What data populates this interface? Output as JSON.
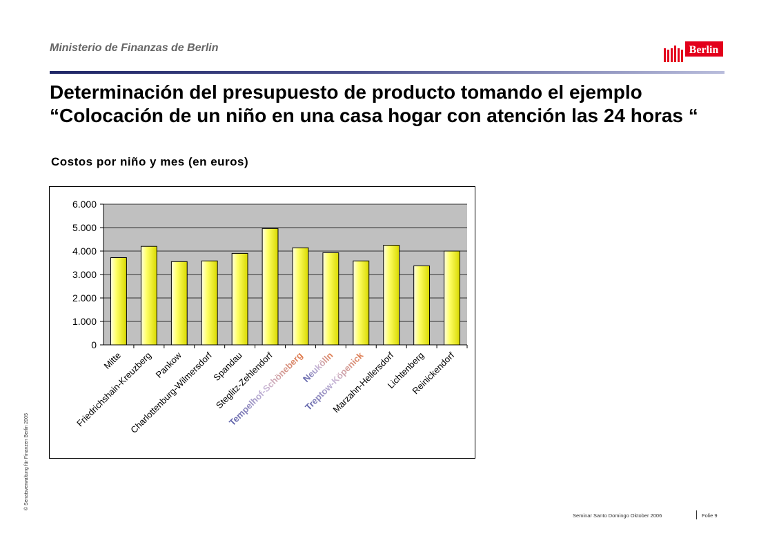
{
  "header": {
    "ministry": "Ministerio de Finanzas de Berlin",
    "logo_text": "Berlin",
    "logo_color": "#e3001b"
  },
  "slide": {
    "title": "Determinación del presupuesto de producto tomando el ejemplo “Colocación de un niño en una casa hogar con atención las 24 horas “",
    "subtitle": "Costos por niño y mes (en euros)"
  },
  "footer": {
    "copyright": "© Senatsverwaltung für Finanzen Berlin 2005",
    "seminar": "Seminar Santo Domingo Oktober 2006",
    "page": "Folie 9"
  },
  "chart_data": {
    "type": "bar",
    "title": "",
    "xlabel": "",
    "ylabel": "",
    "categories": [
      "Mitte",
      "Friedrichshain-Kreuzberg",
      "Pankow",
      "Charlottenburg-Wilmersdorf",
      "Spandau",
      "Steglitz-Zehlendorf",
      "Tempelhof-Schöneberg",
      "Neukölln",
      "Treptow-Köpenick",
      "Marzahn-Hellersdorf",
      "Lichtenberg",
      "Reinickendorf"
    ],
    "highlighted_categories": [
      "Tempelhof-Schöneberg",
      "Neukölln",
      "Treptow-Köpenick"
    ],
    "values": [
      3720,
      4200,
      3550,
      3580,
      3900,
      4960,
      4140,
      3930,
      3580,
      4250,
      3370,
      4000
    ],
    "yticks": [
      "0",
      "1.000",
      "2.000",
      "3.000",
      "4.000",
      "5.000",
      "6.000"
    ],
    "ylim": [
      0,
      6000
    ],
    "grid": true,
    "colors": {
      "bar": "#ffff66",
      "plot_background": "#c0c0c0",
      "highlight_label": "#7b7fc4"
    }
  }
}
